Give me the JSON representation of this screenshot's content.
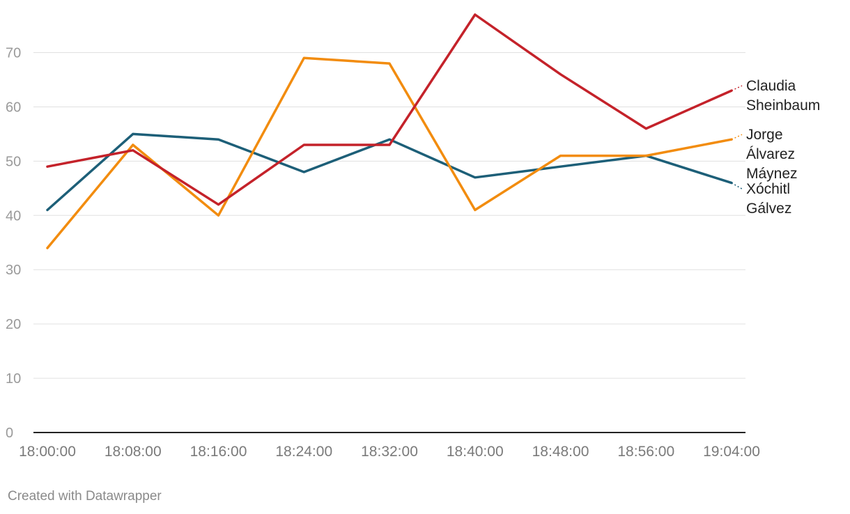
{
  "chart_data": {
    "type": "line",
    "x": [
      "18:00:00",
      "18:08:00",
      "18:16:00",
      "18:24:00",
      "18:32:00",
      "18:40:00",
      "18:48:00",
      "18:56:00",
      "19:04:00"
    ],
    "ylim": [
      0,
      77
    ],
    "yticks": [
      0,
      10,
      20,
      30,
      40,
      50,
      60,
      70
    ],
    "grid": true,
    "legend": "direct-labels-right",
    "series": [
      {
        "name": "Xóchitl Gálvez",
        "label_lines": [
          "Xóchitl",
          "Gálvez"
        ],
        "color": "#1d5f78",
        "values": [
          41,
          55,
          54,
          48,
          54,
          47,
          49,
          51,
          46
        ]
      },
      {
        "name": "Jorge Álvarez Máynez",
        "label_lines": [
          "Jorge",
          "Álvarez",
          "Máynez"
        ],
        "color": "#f28c0f",
        "values": [
          34,
          53,
          40,
          69,
          68,
          41,
          51,
          51,
          54
        ]
      },
      {
        "name": "Claudia Sheinbaum",
        "label_lines": [
          "Claudia",
          "Sheinbaum"
        ],
        "color": "#c4222a",
        "values": [
          49,
          52,
          42,
          53,
          53,
          77,
          66,
          56,
          63
        ]
      }
    ]
  },
  "footer": {
    "credit": "Created with Datawrapper"
  }
}
